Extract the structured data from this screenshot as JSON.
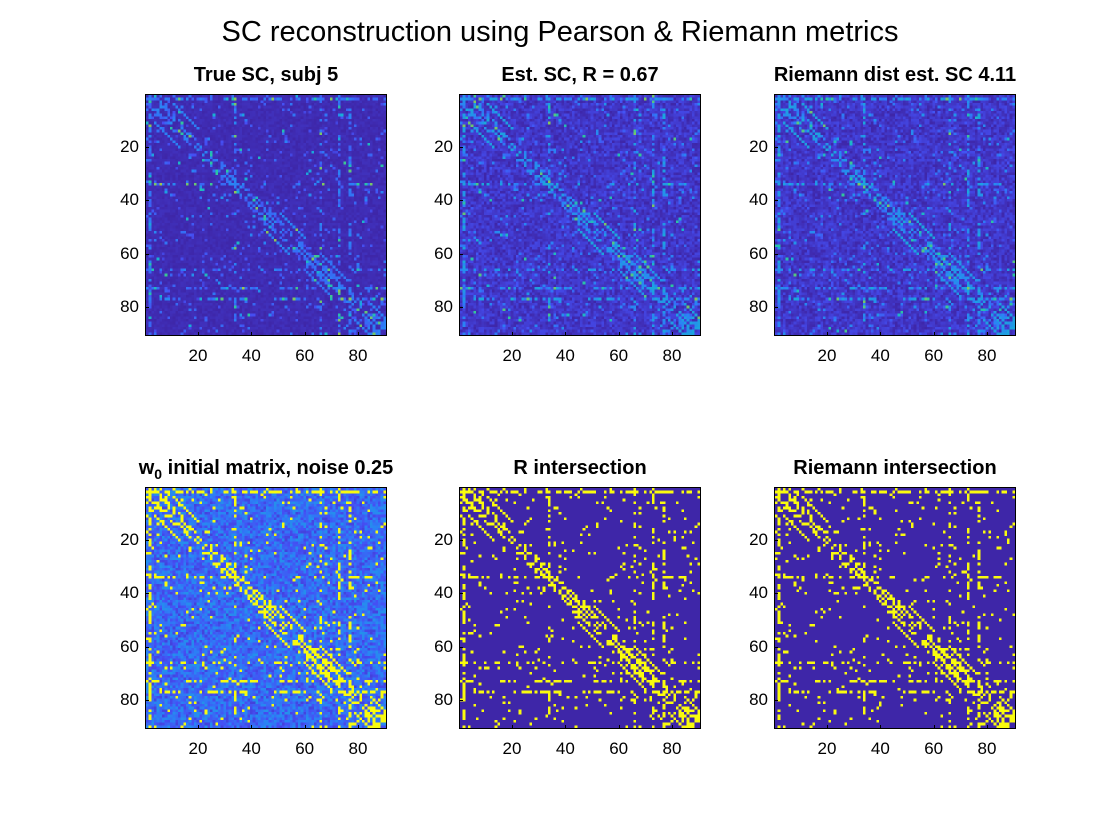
{
  "figure": {
    "title": "SC reconstruction using Pearson & Riemann metrics",
    "colormap_low": "#3e26a8",
    "colormap_high": "#f9fb0e"
  },
  "chart_data": [
    {
      "type": "heatmap",
      "title": "True SC, subj 5",
      "matrix_size": 90,
      "xlim": [
        0.5,
        90.5
      ],
      "ylim": [
        0.5,
        90.5
      ],
      "xticks": [
        20,
        40,
        60,
        80
      ],
      "yticks": [
        20,
        40,
        60,
        80
      ],
      "xtick_labels": [
        "20",
        "40",
        "60",
        "80"
      ],
      "ytick_labels": [
        "20",
        "40",
        "60",
        "80"
      ],
      "values": "sparse weighted connectivity, mostly near 0 with few high-weight entries along diagonal"
    },
    {
      "type": "heatmap",
      "title": "Est. SC, R = 0.67",
      "matrix_size": 90,
      "xlim": [
        0.5,
        90.5
      ],
      "ylim": [
        0.5,
        90.5
      ],
      "xticks": [
        20,
        40,
        60,
        80
      ],
      "yticks": [
        20,
        40,
        60,
        80
      ],
      "xtick_labels": [
        "20",
        "40",
        "60",
        "80"
      ],
      "ytick_labels": [
        "20",
        "40",
        "60",
        "80"
      ],
      "values": "estimated weighted connectivity"
    },
    {
      "type": "heatmap",
      "title": "Riemann dist est. SC 4.11",
      "matrix_size": 90,
      "xlim": [
        0.5,
        90.5
      ],
      "ylim": [
        0.5,
        90.5
      ],
      "xticks": [
        20,
        40,
        60,
        80
      ],
      "yticks": [
        20,
        40,
        60,
        80
      ],
      "xtick_labels": [
        "20",
        "40",
        "60",
        "80"
      ],
      "ytick_labels": [
        "20",
        "40",
        "60",
        "80"
      ],
      "values": "estimated weighted connectivity"
    },
    {
      "type": "heatmap",
      "title_main": "w",
      "title_sub": "0",
      "title_rest": " initial matrix, noise 0.25",
      "matrix_size": 90,
      "xlim": [
        0.5,
        90.5
      ],
      "ylim": [
        0.5,
        90.5
      ],
      "xticks": [
        20,
        40,
        60,
        80
      ],
      "yticks": [
        20,
        40,
        60,
        80
      ],
      "xtick_labels": [
        "20",
        "40",
        "60",
        "80"
      ],
      "ytick_labels": [
        "20",
        "40",
        "60",
        "80"
      ],
      "values": "binary structure plus uniform noise"
    },
    {
      "type": "heatmap",
      "title": "R intersection",
      "matrix_size": 90,
      "xlim": [
        0.5,
        90.5
      ],
      "ylim": [
        0.5,
        90.5
      ],
      "xticks": [
        20,
        40,
        60,
        80
      ],
      "yticks": [
        20,
        40,
        60,
        80
      ],
      "xtick_labels": [
        "20",
        "40",
        "60",
        "80"
      ],
      "ytick_labels": [
        "20",
        "40",
        "60",
        "80"
      ],
      "values": "binary (0/1) intersection mask"
    },
    {
      "type": "heatmap",
      "title": "Riemann intersection",
      "matrix_size": 90,
      "xlim": [
        0.5,
        90.5
      ],
      "ylim": [
        0.5,
        90.5
      ],
      "xticks": [
        20,
        40,
        60,
        80
      ],
      "yticks": [
        20,
        40,
        60,
        80
      ],
      "xtick_labels": [
        "20",
        "40",
        "60",
        "80"
      ],
      "ytick_labels": [
        "20",
        "40",
        "60",
        "80"
      ],
      "values": "binary (0/1) intersection mask"
    }
  ]
}
